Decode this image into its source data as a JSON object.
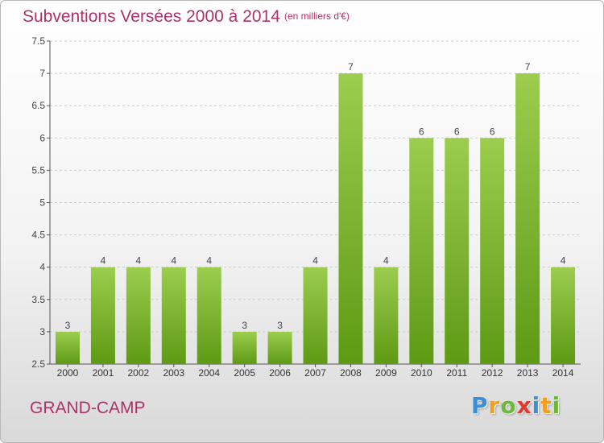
{
  "chart_data": {
    "type": "bar",
    "title": "Subventions Versées 2000 à 2014",
    "subtitle": "(en milliers d'€)",
    "categories": [
      "2000",
      "2001",
      "2002",
      "2003",
      "2004",
      "2005",
      "2006",
      "2007",
      "2008",
      "2009",
      "2010",
      "2011",
      "2012",
      "2013",
      "2014"
    ],
    "values": [
      3,
      4,
      4,
      4,
      4,
      3,
      3,
      4,
      7,
      4,
      6,
      6,
      6,
      7,
      4
    ],
    "ylim": [
      2.5,
      7.5
    ],
    "yticks": [
      "2.5",
      "3",
      "3.5",
      "4",
      "4.5",
      "5",
      "5.5",
      "6",
      "6.5",
      "7",
      "7.5"
    ],
    "grid": true,
    "bar_color_top": "#9ccd4e",
    "bar_color_bottom": "#5e9a14"
  },
  "commune": "GRAND-CAMP",
  "logo": {
    "letters": [
      "P",
      "r",
      "o",
      "x",
      "i",
      "t",
      "i"
    ],
    "colors": [
      "#3a8fd8",
      "#f0a020",
      "#6cb83a",
      "#e03a30",
      "#3a8fd8",
      "#f0a020",
      "#6cb83a"
    ]
  },
  "colors": {
    "accent": "#b0306a",
    "axis": "#555555",
    "grid": "#cccccc"
  }
}
